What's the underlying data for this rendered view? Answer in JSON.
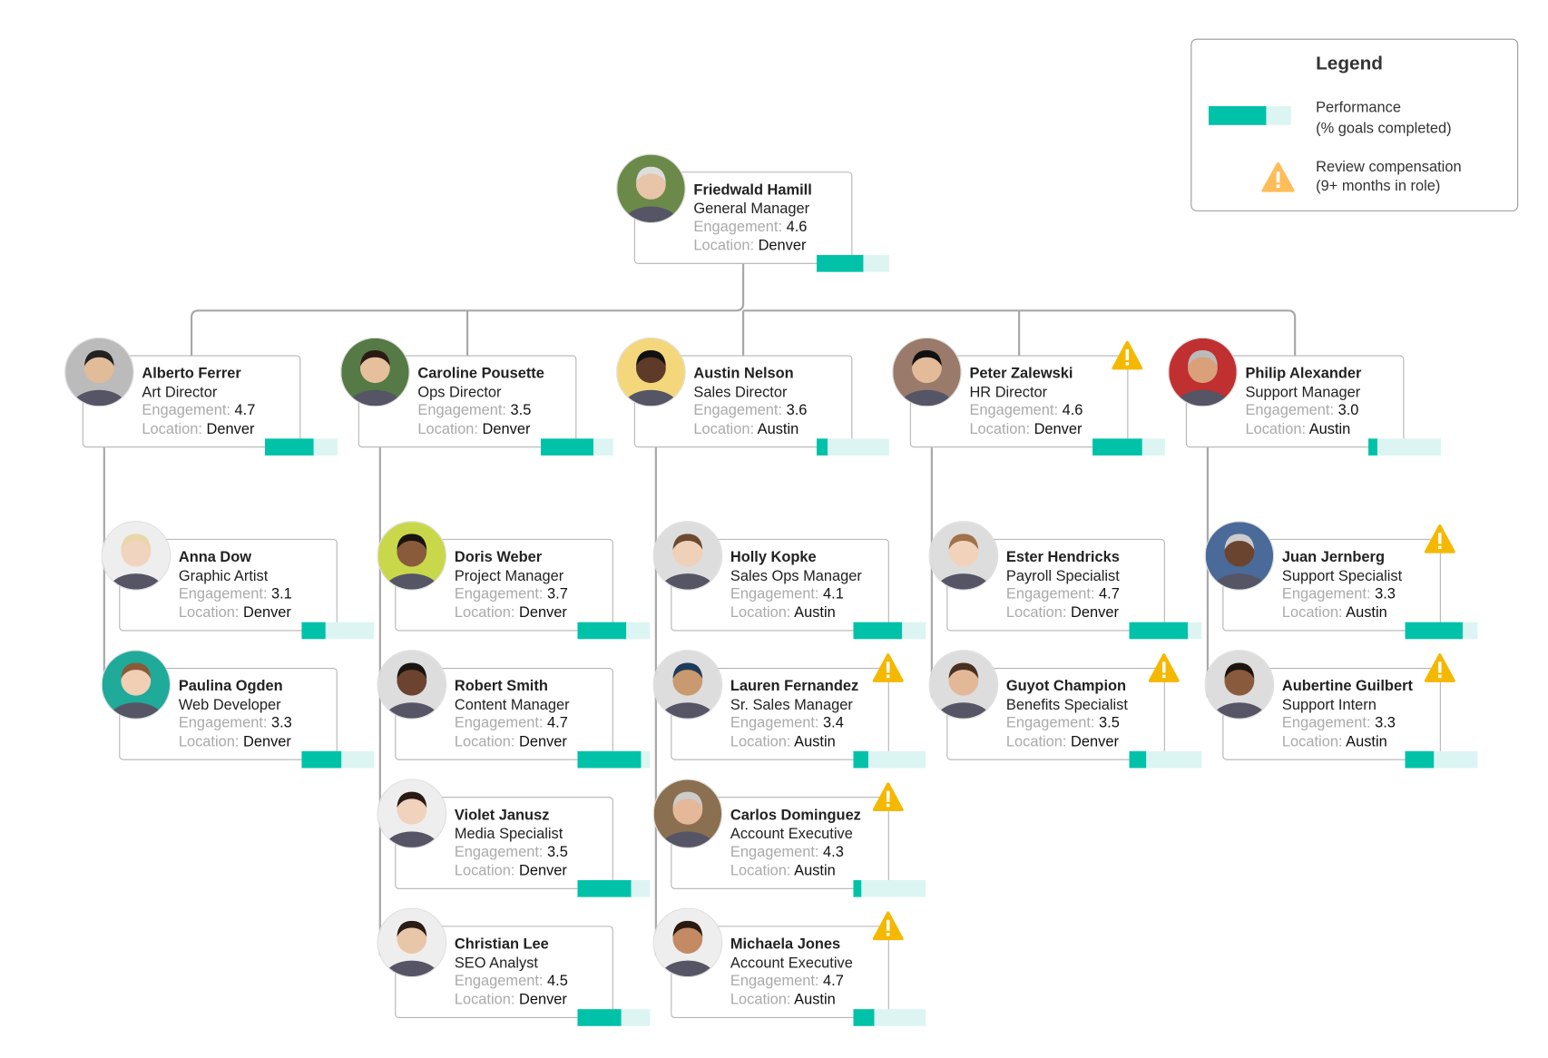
{
  "colors": {
    "performance_fill": "#00c2a8",
    "performance_track": "#dcf5f3",
    "warning": "#f5b800",
    "legend_warning": "#ffbd59",
    "connector": "#a8a8a8"
  },
  "labels": {
    "engagement": "Engagement:",
    "location": "Location:"
  },
  "legend": {
    "title": "Legend",
    "performance_line1": "Performance",
    "performance_line2": "(% goals completed)",
    "warning_line1": "Review compensation",
    "warning_line2": "(9+ months in role)",
    "warning_icon": "warning-triangle-icon"
  },
  "manager": {
    "name": "Friedwald Hamill",
    "title": "General Manager",
    "engagement": "4.6",
    "location": "Denver",
    "performance": 0.65,
    "warning": false,
    "skin": "#e8c4a8",
    "hair": "#ddd",
    "bg": "#6b8a4a"
  },
  "departments": [
    {
      "head": {
        "name": "Alberto Ferrer",
        "title": "Art Director",
        "engagement": "4.7",
        "location": "Denver",
        "performance": 0.67,
        "warning": false,
        "skin": "#e2bb98",
        "hair": "#222",
        "bg": "#bbb"
      },
      "reports": [
        {
          "name": "Anna Dow",
          "title": "Graphic Artist",
          "engagement": "3.1",
          "location": "Denver",
          "performance": 0.33,
          "warning": false,
          "skin": "#f1d4bf",
          "hair": "#e8d7a8",
          "bg": "#eee"
        },
        {
          "name": "Paulina Ogden",
          "title": "Web Developer",
          "engagement": "3.3",
          "location": "Denver",
          "performance": 0.55,
          "warning": false,
          "skin": "#f0cfb5",
          "hair": "#8a5a36",
          "bg": "#1faa9a"
        }
      ]
    },
    {
      "head": {
        "name": "Caroline Pousette",
        "title": "Ops Director",
        "engagement": "3.5",
        "location": "Denver",
        "performance": 0.73,
        "warning": false,
        "skin": "#e6bf9c",
        "hair": "#2a1c14",
        "bg": "#557a45"
      },
      "reports": [
        {
          "name": "Doris Weber",
          "title": "Project Manager",
          "engagement": "3.7",
          "location": "Denver",
          "performance": 0.67,
          "warning": false,
          "skin": "#8a5a3c",
          "hair": "#1a1410",
          "bg": "#c8d84a"
        },
        {
          "name": "Robert Smith",
          "title": "Content Manager",
          "engagement": "4.7",
          "location": "Denver",
          "performance": 0.88,
          "warning": false,
          "skin": "#6b4330",
          "hair": "#1a1410",
          "bg": "#ddd"
        },
        {
          "name": "Violet Janusz",
          "title": "Media Specialist",
          "engagement": "3.5",
          "location": "Denver",
          "performance": 0.74,
          "warning": false,
          "skin": "#f1d2bd",
          "hair": "#2a1a14",
          "bg": "#eee"
        },
        {
          "name": "Christian Lee",
          "title": "SEO Analyst",
          "engagement": "4.5",
          "location": "Denver",
          "performance": 0.6,
          "warning": false,
          "skin": "#e8c6a8",
          "hair": "#2a1c14",
          "bg": "#eee"
        }
      ]
    },
    {
      "head": {
        "name": "Austin Nelson",
        "title": "Sales Director",
        "engagement": "3.6",
        "location": "Austin",
        "performance": 0.15,
        "warning": false,
        "skin": "#5e3b28",
        "hair": "#111",
        "bg": "#f3d77a"
      },
      "reports": [
        {
          "name": "Holly Kopke",
          "title": "Sales Ops Manager",
          "engagement": "4.1",
          "location": "Austin",
          "performance": 0.67,
          "warning": false,
          "skin": "#efd0b8",
          "hair": "#6b4a30",
          "bg": "#ddd"
        },
        {
          "name": "Lauren Fernandez",
          "title": "Sr. Sales Manager",
          "engagement": "3.4",
          "location": "Austin",
          "performance": 0.2,
          "warning": true,
          "skin": "#c9996f",
          "hair": "#1f3b5a",
          "bg": "#ddd"
        },
        {
          "name": "Carlos Dominguez",
          "title": "Account Executive",
          "engagement": "4.3",
          "location": "Austin",
          "performance": 0.11,
          "warning": true,
          "skin": "#e6b89a",
          "hair": "#ccc",
          "bg": "#8a7050"
        },
        {
          "name": "Michaela Jones",
          "title": "Account Executive",
          "engagement": "4.7",
          "location": "Austin",
          "performance": 0.29,
          "warning": true,
          "skin": "#c38a64",
          "hair": "#2a1a10",
          "bg": "#eee"
        }
      ]
    },
    {
      "head": {
        "name": "Peter Zalewski",
        "title": "HR Director",
        "engagement": "4.6",
        "location": "Denver",
        "performance": 0.68,
        "warning": true,
        "skin": "#e3bb98",
        "hair": "#111",
        "bg": "#9a7a6a"
      },
      "reports": [
        {
          "name": "Ester Hendricks",
          "title": "Payroll Specialist",
          "engagement": "4.7",
          "location": "Denver",
          "performance": 0.81,
          "warning": false,
          "skin": "#f1d2bb",
          "hair": "#a0724a",
          "bg": "#ddd"
        },
        {
          "name": "Guyot Champion",
          "title": "Benefits Specialist",
          "engagement": "3.5",
          "location": "Denver",
          "performance": 0.23,
          "warning": true,
          "skin": "#e3b898",
          "hair": "#4a3020",
          "bg": "#ddd"
        }
      ]
    },
    {
      "head": {
        "name": "Philip Alexander",
        "title": "Support Manager",
        "engagement": "3.0",
        "location": "Austin",
        "performance": 0.12,
        "warning": false,
        "skin": "#d9a07a",
        "hair": "#bbb",
        "bg": "#c03030"
      },
      "reports": [
        {
          "name": "Juan Jernberg",
          "title": "Support Specialist",
          "engagement": "3.3",
          "location": "Austin",
          "performance": 0.79,
          "warning": true,
          "skin": "#6b4430",
          "hair": "#ccc",
          "bg": "#4a6a9a"
        },
        {
          "name": "Aubertine Guilbert",
          "title": "Support Intern",
          "engagement": "3.3",
          "location": "Austin",
          "performance": 0.4,
          "warning": true,
          "skin": "#8a5a3c",
          "hair": "#1a1410",
          "bg": "#ddd"
        }
      ]
    }
  ]
}
